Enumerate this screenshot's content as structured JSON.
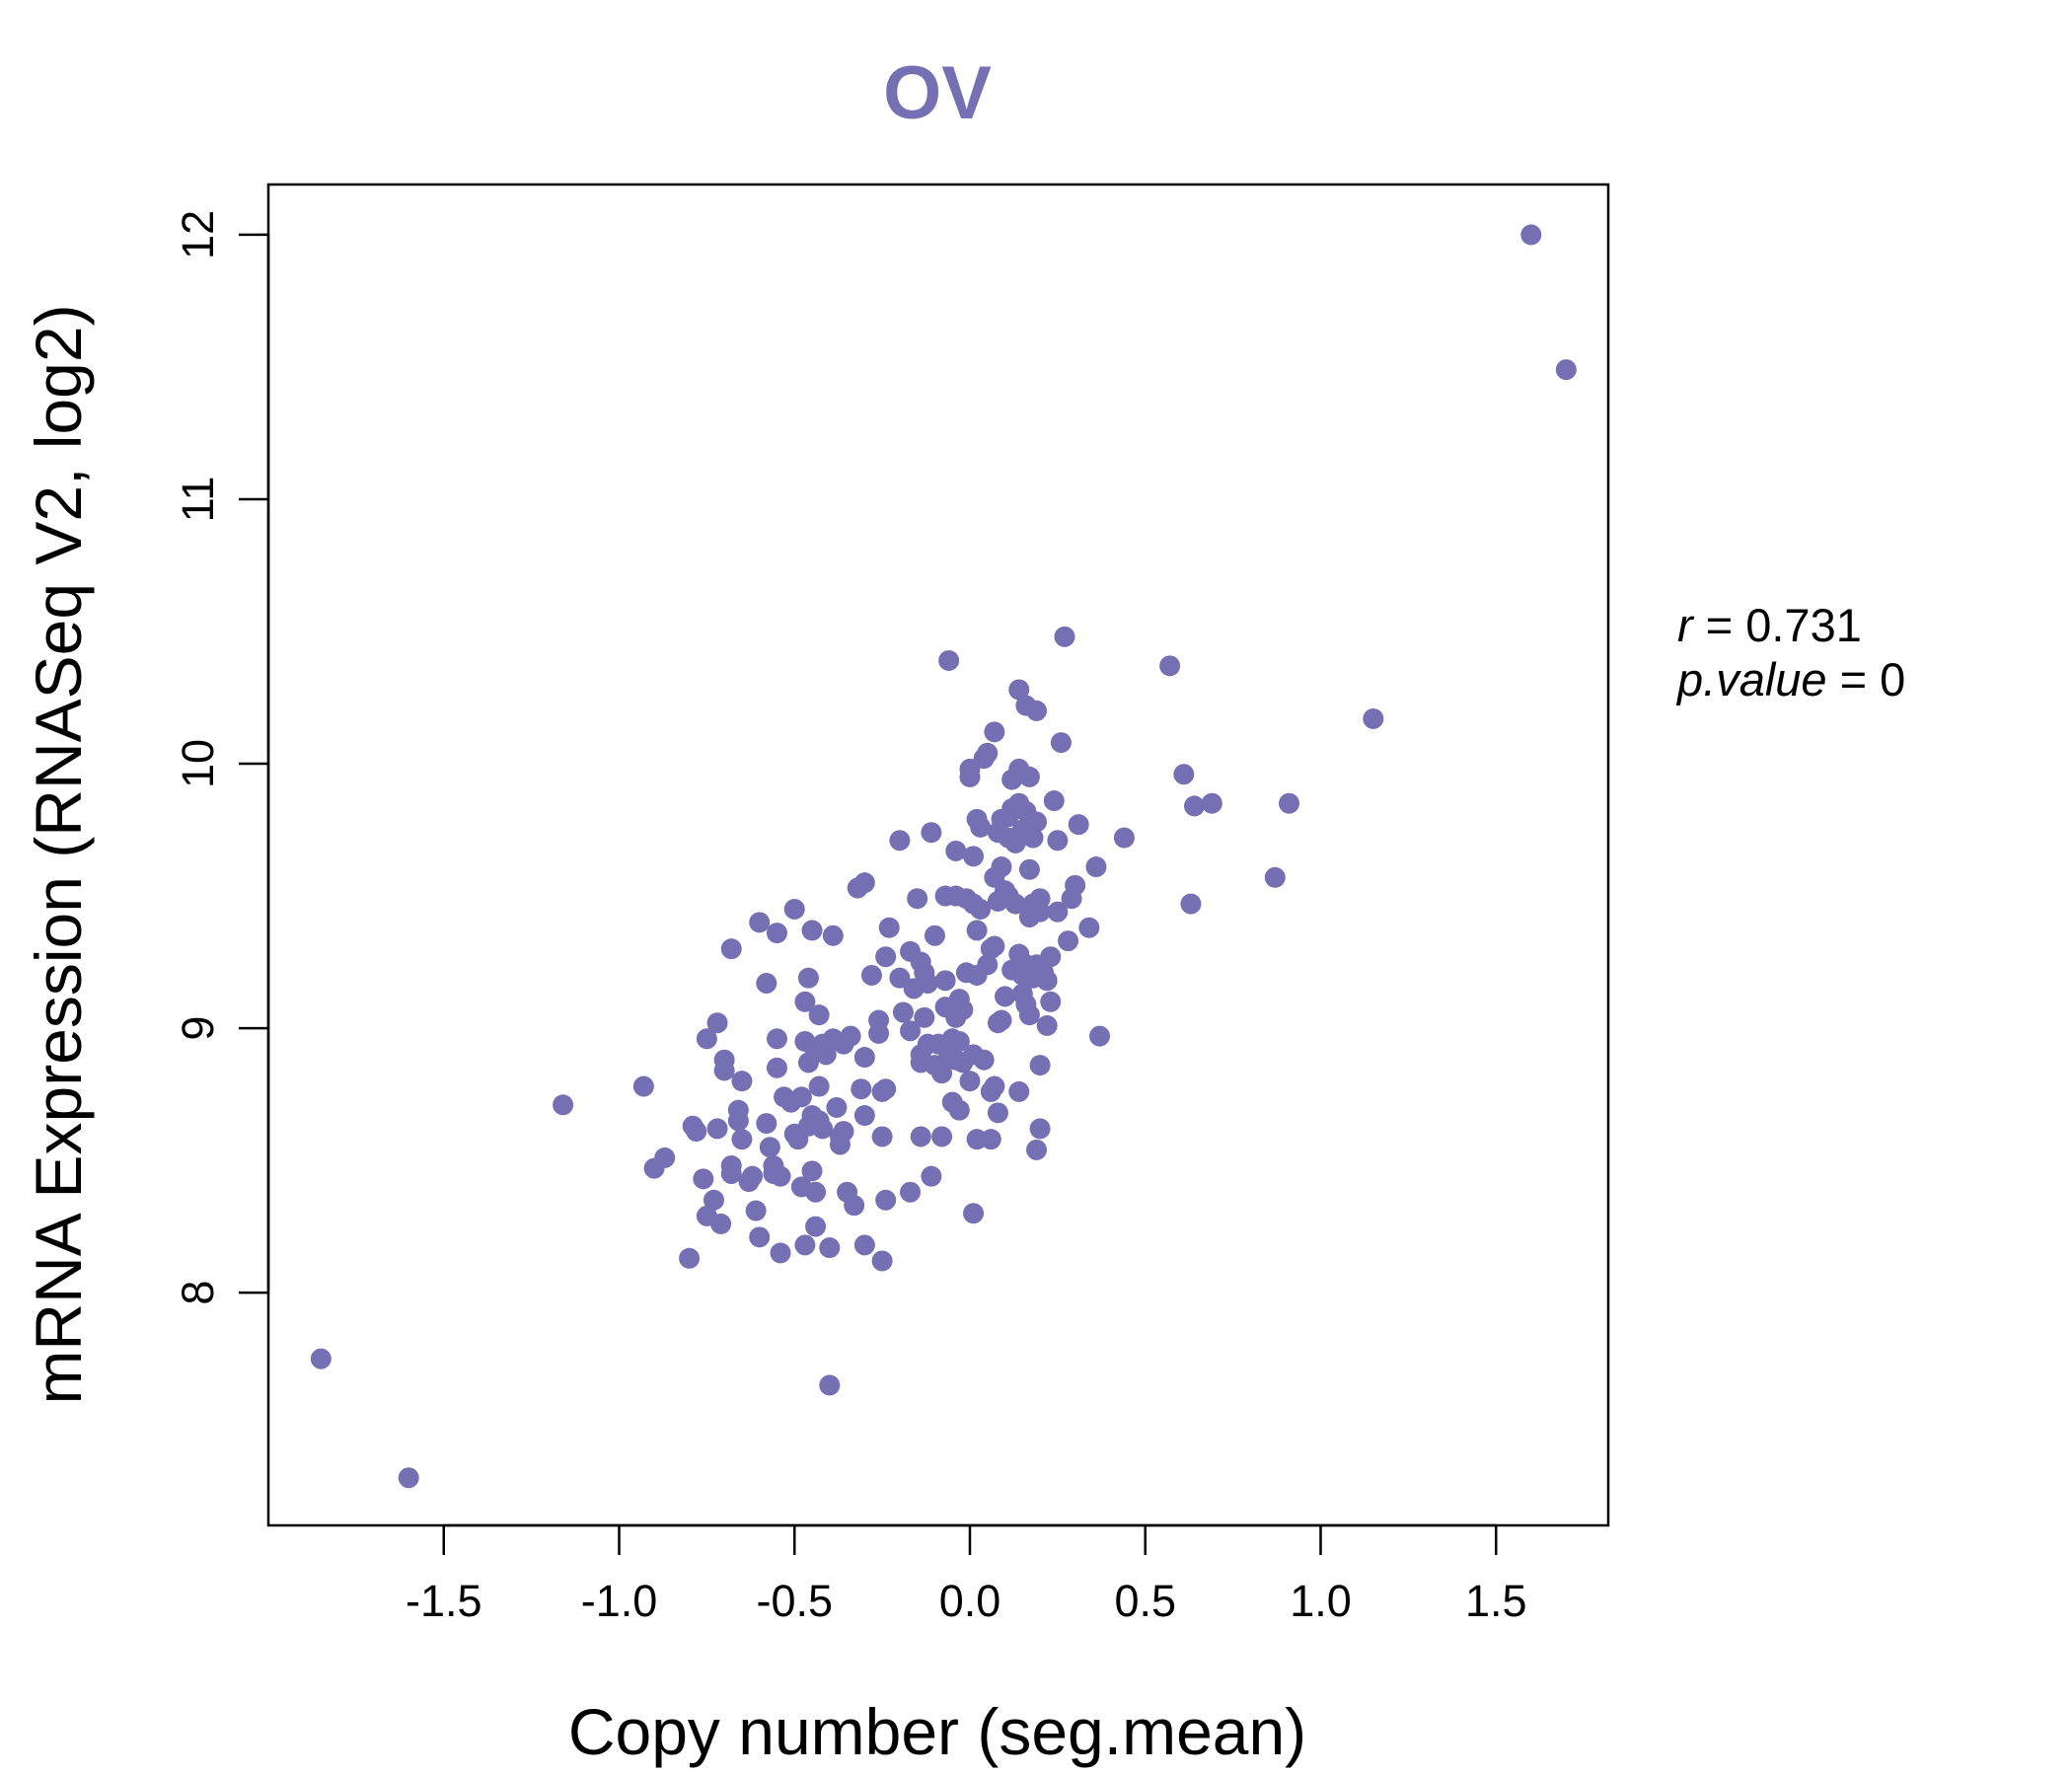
{
  "chart_data": {
    "type": "scatter",
    "title": "OV",
    "xlabel": "Copy number (seg.mean)",
    "ylabel": "mRNA Expression (RNASeq V2, log2)",
    "xlim": [
      -2.0,
      1.82
    ],
    "ylim": [
      7.12,
      12.19
    ],
    "xticks": [
      -1.5,
      -1.0,
      -0.5,
      0.0,
      0.5,
      1.0,
      1.5
    ],
    "xtick_labels": [
      "-1.5",
      "-1.0",
      "-0.5",
      "0.0",
      "0.5",
      "1.0",
      "1.5"
    ],
    "yticks": [
      8,
      9,
      10,
      11,
      12
    ],
    "ytick_labels": [
      "8",
      "9",
      "10",
      "11",
      "12"
    ],
    "point_color": "#7570b3",
    "stats": {
      "r_label": "r",
      "r_value": "0.731",
      "p_label": "p.value",
      "p_value": "0"
    },
    "points": [
      [
        -1.85,
        7.75
      ],
      [
        -1.6,
        7.3
      ],
      [
        -1.16,
        8.71
      ],
      [
        -0.93,
        8.78
      ],
      [
        -0.9,
        8.47
      ],
      [
        -0.87,
        8.51
      ],
      [
        -0.8,
        8.13
      ],
      [
        -0.79,
        8.63
      ],
      [
        -0.78,
        8.61
      ],
      [
        -0.76,
        8.43
      ],
      [
        -0.75,
        8.96
      ],
      [
        -0.75,
        8.29
      ],
      [
        -0.73,
        8.35
      ],
      [
        -0.72,
        9.02
      ],
      [
        -0.72,
        8.62
      ],
      [
        -0.71,
        8.26
      ],
      [
        -0.7,
        8.88
      ],
      [
        -0.7,
        8.84
      ],
      [
        -0.68,
        8.48
      ],
      [
        -0.68,
        8.45
      ],
      [
        -0.68,
        9.3
      ],
      [
        -0.66,
        8.69
      ],
      [
        -0.66,
        8.65
      ],
      [
        -0.65,
        8.8
      ],
      [
        -0.65,
        8.58
      ],
      [
        -0.63,
        8.42
      ],
      [
        -0.62,
        8.44
      ],
      [
        -0.61,
        8.31
      ],
      [
        -0.6,
        9.4
      ],
      [
        -0.6,
        8.21
      ],
      [
        -0.58,
        9.17
      ],
      [
        -0.58,
        8.64
      ],
      [
        -0.57,
        8.55
      ],
      [
        -0.56,
        8.48
      ],
      [
        -0.56,
        8.45
      ],
      [
        -0.55,
        9.36
      ],
      [
        -0.55,
        8.96
      ],
      [
        -0.55,
        8.85
      ],
      [
        -0.54,
        8.44
      ],
      [
        -0.54,
        8.15
      ],
      [
        -0.53,
        8.74
      ],
      [
        -0.51,
        8.72
      ],
      [
        -0.5,
        9.45
      ],
      [
        -0.5,
        8.6
      ],
      [
        -0.49,
        8.58
      ],
      [
        -0.48,
        8.74
      ],
      [
        -0.48,
        8.4
      ],
      [
        -0.47,
        9.1
      ],
      [
        -0.47,
        8.95
      ],
      [
        -0.47,
        8.18
      ],
      [
        -0.46,
        9.19
      ],
      [
        -0.46,
        8.87
      ],
      [
        -0.46,
        8.63
      ],
      [
        -0.45,
        9.37
      ],
      [
        -0.45,
        8.67
      ],
      [
        -0.45,
        8.46
      ],
      [
        -0.44,
        8.91
      ],
      [
        -0.44,
        8.38
      ],
      [
        -0.44,
        8.25
      ],
      [
        -0.43,
        9.05
      ],
      [
        -0.43,
        8.78
      ],
      [
        -0.43,
        8.65
      ],
      [
        -0.42,
        8.94
      ],
      [
        -0.42,
        8.62
      ],
      [
        -0.41,
        8.9
      ],
      [
        -0.4,
        8.17
      ],
      [
        -0.4,
        7.65
      ],
      [
        -0.39,
        9.35
      ],
      [
        -0.39,
        8.96
      ],
      [
        -0.38,
        8.7
      ],
      [
        -0.37,
        8.59
      ],
      [
        -0.37,
        8.56
      ],
      [
        -0.36,
        8.94
      ],
      [
        -0.36,
        8.61
      ],
      [
        -0.35,
        8.38
      ],
      [
        -0.34,
        8.97
      ],
      [
        -0.33,
        8.33
      ],
      [
        -0.32,
        9.53
      ],
      [
        -0.31,
        8.77
      ],
      [
        -0.3,
        9.55
      ],
      [
        -0.3,
        8.89
      ],
      [
        -0.3,
        8.67
      ],
      [
        -0.3,
        8.18
      ],
      [
        -0.28,
        9.2
      ],
      [
        -0.26,
        9.03
      ],
      [
        -0.26,
        8.98
      ],
      [
        -0.25,
        8.76
      ],
      [
        -0.25,
        8.59
      ],
      [
        -0.25,
        8.12
      ],
      [
        -0.24,
        9.27
      ],
      [
        -0.24,
        8.77
      ],
      [
        -0.24,
        8.35
      ],
      [
        -0.23,
        9.38
      ],
      [
        -0.2,
        9.71
      ],
      [
        -0.2,
        9.19
      ],
      [
        -0.19,
        9.06
      ],
      [
        -0.17,
        9.29
      ],
      [
        -0.17,
        8.99
      ],
      [
        -0.17,
        8.38
      ],
      [
        -0.16,
        9.15
      ],
      [
        -0.15,
        9.49
      ],
      [
        -0.14,
        9.25
      ],
      [
        -0.14,
        8.9
      ],
      [
        -0.14,
        8.87
      ],
      [
        -0.14,
        8.59
      ],
      [
        -0.13,
        9.21
      ],
      [
        -0.13,
        9.04
      ],
      [
        -0.12,
        9.17
      ],
      [
        -0.12,
        8.94
      ],
      [
        -0.11,
        9.74
      ],
      [
        -0.11,
        8.44
      ],
      [
        -0.1,
        9.35
      ],
      [
        -0.1,
        8.86
      ],
      [
        -0.09,
        8.94
      ],
      [
        -0.08,
        8.83
      ],
      [
        -0.08,
        8.59
      ],
      [
        -0.07,
        9.5
      ],
      [
        -0.07,
        9.18
      ],
      [
        -0.07,
        9.08
      ],
      [
        -0.06,
        10.39
      ],
      [
        -0.06,
        8.9
      ],
      [
        -0.05,
        8.96
      ],
      [
        -0.05,
        8.72
      ],
      [
        -0.04,
        9.67
      ],
      [
        -0.04,
        9.5
      ],
      [
        -0.04,
        9.04
      ],
      [
        -0.04,
        8.88
      ],
      [
        -0.03,
        9.11
      ],
      [
        -0.03,
        8.95
      ],
      [
        -0.03,
        8.69
      ],
      [
        -0.02,
        9.07
      ],
      [
        -0.02,
        8.87
      ],
      [
        -0.01,
        9.49
      ],
      [
        -0.01,
        9.21
      ],
      [
        0.0,
        9.98
      ],
      [
        0.0,
        9.95
      ],
      [
        0.0,
        8.8
      ],
      [
        0.01,
        9.65
      ],
      [
        0.01,
        9.47
      ],
      [
        0.01,
        8.9
      ],
      [
        0.01,
        8.3
      ],
      [
        0.02,
        9.79
      ],
      [
        0.02,
        9.37
      ],
      [
        0.02,
        9.2
      ],
      [
        0.02,
        8.58
      ],
      [
        0.03,
        9.76
      ],
      [
        0.03,
        9.45
      ],
      [
        0.04,
        10.02
      ],
      [
        0.04,
        8.88
      ],
      [
        0.05,
        10.04
      ],
      [
        0.05,
        9.24
      ],
      [
        0.06,
        9.3
      ],
      [
        0.06,
        8.76
      ],
      [
        0.06,
        8.58
      ],
      [
        0.07,
        10.12
      ],
      [
        0.07,
        9.57
      ],
      [
        0.07,
        9.31
      ],
      [
        0.07,
        8.78
      ],
      [
        0.08,
        9.74
      ],
      [
        0.08,
        9.48
      ],
      [
        0.08,
        9.02
      ],
      [
        0.08,
        8.68
      ],
      [
        0.09,
        9.79
      ],
      [
        0.09,
        9.61
      ],
      [
        0.09,
        9.03
      ],
      [
        0.1,
        9.52
      ],
      [
        0.1,
        9.12
      ],
      [
        0.11,
        9.8
      ],
      [
        0.11,
        9.72
      ],
      [
        0.11,
        9.5
      ],
      [
        0.12,
        9.94
      ],
      [
        0.12,
        9.83
      ],
      [
        0.12,
        9.22
      ],
      [
        0.13,
        9.7
      ],
      [
        0.13,
        9.47
      ],
      [
        0.14,
        10.28
      ],
      [
        0.14,
        9.98
      ],
      [
        0.14,
        9.85
      ],
      [
        0.14,
        9.28
      ],
      [
        0.14,
        8.76
      ],
      [
        0.15,
        9.75
      ],
      [
        0.15,
        9.2
      ],
      [
        0.15,
        9.13
      ],
      [
        0.16,
        10.22
      ],
      [
        0.16,
        9.82
      ],
      [
        0.16,
        9.24
      ],
      [
        0.16,
        9.09
      ],
      [
        0.17,
        9.95
      ],
      [
        0.17,
        9.6
      ],
      [
        0.17,
        9.42
      ],
      [
        0.17,
        9.05
      ],
      [
        0.18,
        9.72
      ],
      [
        0.18,
        9.47
      ],
      [
        0.18,
        9.19
      ],
      [
        0.19,
        10.2
      ],
      [
        0.19,
        9.78
      ],
      [
        0.19,
        9.24
      ],
      [
        0.19,
        8.54
      ],
      [
        0.2,
        9.49
      ],
      [
        0.2,
        9.44
      ],
      [
        0.2,
        8.86
      ],
      [
        0.2,
        8.62
      ],
      [
        0.21,
        9.21
      ],
      [
        0.22,
        9.18
      ],
      [
        0.22,
        9.01
      ],
      [
        0.23,
        9.27
      ],
      [
        0.23,
        9.1
      ],
      [
        0.24,
        9.86
      ],
      [
        0.25,
        9.71
      ],
      [
        0.25,
        9.44
      ],
      [
        0.26,
        10.08
      ],
      [
        0.27,
        10.48
      ],
      [
        0.28,
        9.33
      ],
      [
        0.29,
        9.49
      ],
      [
        0.3,
        9.54
      ],
      [
        0.31,
        9.77
      ],
      [
        0.34,
        9.38
      ],
      [
        0.36,
        9.61
      ],
      [
        0.37,
        8.97
      ],
      [
        0.44,
        9.72
      ],
      [
        0.57,
        10.37
      ],
      [
        0.61,
        9.96
      ],
      [
        0.63,
        9.47
      ],
      [
        0.64,
        9.84
      ],
      [
        0.69,
        9.85
      ],
      [
        0.87,
        9.57
      ],
      [
        0.91,
        9.85
      ],
      [
        1.15,
        10.17
      ],
      [
        1.6,
        12.0
      ],
      [
        1.7,
        11.49
      ]
    ]
  }
}
